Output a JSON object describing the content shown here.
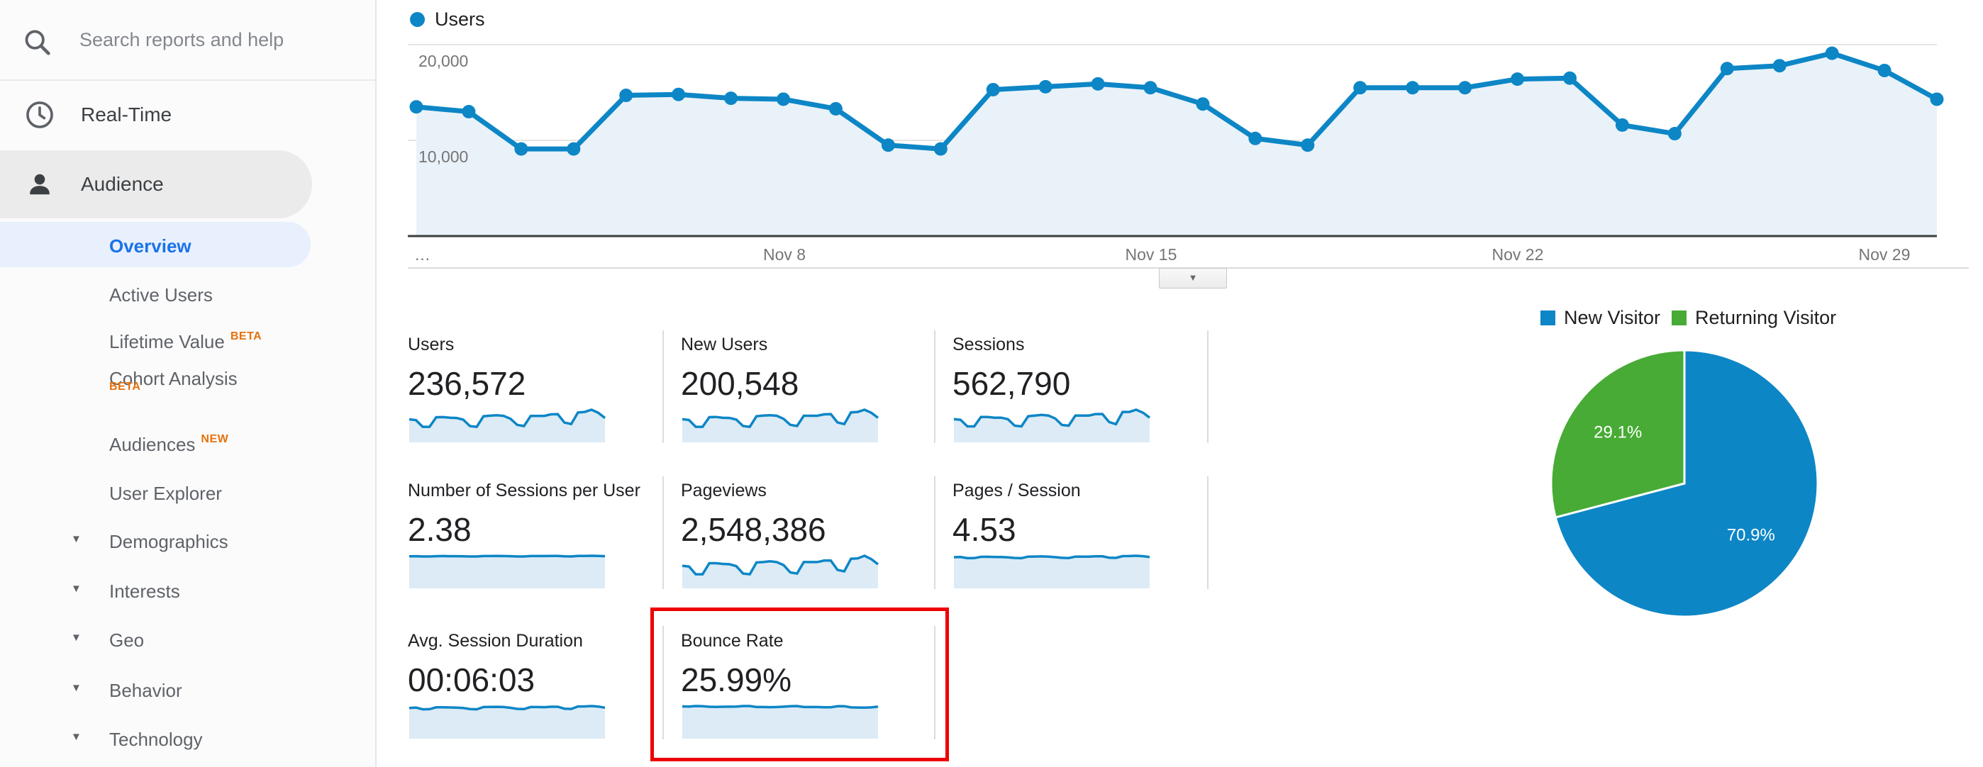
{
  "sidebar": {
    "search": {
      "placeholder": "Search reports and help"
    },
    "sections": [
      {
        "label": "Real-Time",
        "icon": "clock-icon"
      },
      {
        "label": "Audience",
        "icon": "person-icon",
        "active": true
      }
    ],
    "audience_items": [
      {
        "label": "Overview",
        "selected": true
      },
      {
        "label": "Active Users"
      },
      {
        "label": "Lifetime Value",
        "badge": "BETA",
        "badge_position": "superscript"
      },
      {
        "label": "Cohort Analysis",
        "badge": "BETA",
        "badge_position": "below"
      },
      {
        "label": "Audiences",
        "badge": "NEW",
        "badge_position": "superscript"
      },
      {
        "label": "User Explorer"
      },
      {
        "label": "Demographics",
        "expandable": true
      },
      {
        "label": "Interests",
        "expandable": true
      },
      {
        "label": "Geo",
        "expandable": true
      },
      {
        "label": "Behavior",
        "expandable": true
      },
      {
        "label": "Technology",
        "expandable": true
      }
    ]
  },
  "chart_data": [
    {
      "type": "line",
      "legend": [
        "Users"
      ],
      "x_dates": [
        "Nov 1",
        "Nov 2",
        "Nov 3",
        "Nov 4",
        "Nov 5",
        "Nov 6",
        "Nov 7",
        "Nov 8",
        "Nov 9",
        "Nov 10",
        "Nov 11",
        "Nov 12",
        "Nov 13",
        "Nov 14",
        "Nov 15",
        "Nov 16",
        "Nov 17",
        "Nov 18",
        "Nov 19",
        "Nov 20",
        "Nov 21",
        "Nov 22",
        "Nov 23",
        "Nov 24",
        "Nov 25",
        "Nov 26",
        "Nov 27",
        "Nov 28",
        "Nov 29",
        "Nov 30"
      ],
      "values": [
        13500,
        13000,
        9100,
        9100,
        14700,
        14800,
        14400,
        14300,
        13300,
        9500,
        9100,
        15300,
        15600,
        15900,
        15500,
        13800,
        10200,
        9500,
        15500,
        15500,
        15500,
        16400,
        16500,
        11600,
        10700,
        17500,
        17800,
        19100,
        17300,
        14300
      ],
      "x_tick_labels": [
        "…",
        "Nov 8",
        "Nov 15",
        "Nov 22",
        "Nov 29"
      ],
      "y_ticks": [
        10000,
        20000
      ],
      "y_tick_labels": [
        "10,000",
        "20,000"
      ],
      "ylim": [
        0,
        20000
      ],
      "grid": true,
      "line_color": "#0d86c6",
      "fill_color": "#e9f2f9"
    },
    {
      "type": "pie",
      "labels": [
        "New Visitor",
        "Returning Visitor"
      ],
      "values": [
        70.9,
        29.1
      ],
      "value_labels": [
        "70.9%",
        "29.1%"
      ],
      "colors": [
        "#0d86c6",
        "#47ab35"
      ],
      "legend_position": "top"
    }
  ],
  "metrics": [
    {
      "label": "Users",
      "value": "236,572",
      "spark": [
        13.5,
        13.0,
        9.1,
        9.1,
        14.7,
        14.8,
        14.4,
        14.3,
        13.3,
        9.5,
        9.1,
        15.3,
        15.6,
        15.9,
        15.5,
        13.8,
        10.2,
        9.5,
        15.5,
        15.5,
        15.5,
        16.4,
        16.5,
        11.6,
        10.7,
        17.5,
        17.8,
        19.1,
        17.3,
        14.3
      ]
    },
    {
      "label": "New Users",
      "value": "200,548",
      "spark": [
        11.5,
        11.1,
        7.7,
        7.7,
        12.5,
        12.6,
        12.2,
        12.1,
        11.3,
        8.1,
        7.7,
        13.0,
        13.3,
        13.5,
        13.2,
        11.7,
        8.7,
        8.1,
        13.2,
        13.2,
        13.2,
        13.9,
        14.0,
        9.9,
        9.1,
        14.9,
        15.1,
        16.2,
        14.7,
        12.2
      ]
    },
    {
      "label": "Sessions",
      "value": "562,790",
      "spark": [
        32,
        31,
        22,
        22,
        35,
        35,
        34,
        34,
        32,
        23,
        22,
        36,
        37,
        38,
        37,
        33,
        24,
        23,
        37,
        37,
        37,
        39,
        39,
        28,
        25,
        42,
        42,
        45,
        41,
        34
      ]
    },
    {
      "label": "Number of Sessions per User",
      "value": "2.38",
      "spark": [
        2.37,
        2.38,
        2.36,
        2.36,
        2.38,
        2.39,
        2.38,
        2.38,
        2.37,
        2.36,
        2.36,
        2.39,
        2.39,
        2.4,
        2.39,
        2.38,
        2.36,
        2.36,
        2.39,
        2.39,
        2.39,
        2.4,
        2.4,
        2.37,
        2.36,
        2.4,
        2.4,
        2.41,
        2.4,
        2.38
      ]
    },
    {
      "label": "Pageviews",
      "value": "2,548,386",
      "spark": [
        61,
        59,
        38,
        38,
        68,
        68,
        66,
        65,
        60,
        40,
        38,
        70,
        71,
        73,
        71,
        63,
        43,
        40,
        71,
        71,
        71,
        75,
        75,
        50,
        46,
        80,
        81,
        88,
        79,
        65
      ]
    },
    {
      "label": "Pages / Session",
      "value": "4.53",
      "spark": [
        4.5,
        4.52,
        4.35,
        4.36,
        4.55,
        4.56,
        4.53,
        4.52,
        4.48,
        4.38,
        4.35,
        4.58,
        4.59,
        4.61,
        4.58,
        4.5,
        4.4,
        4.37,
        4.58,
        4.58,
        4.57,
        4.62,
        4.62,
        4.42,
        4.39,
        4.65,
        4.66,
        4.7,
        4.64,
        4.52
      ]
    },
    {
      "label": "Avg. Session Duration",
      "value": "00:06:03",
      "spark": [
        360,
        365,
        345,
        346,
        368,
        369,
        366,
        365,
        360,
        348,
        345,
        371,
        372,
        374,
        371,
        362,
        350,
        347,
        371,
        371,
        370,
        375,
        375,
        352,
        349,
        378,
        379,
        383,
        377,
        364
      ]
    },
    {
      "label": "Bounce Rate",
      "value": "25.99%",
      "highlighted": true,
      "spark": [
        26.2,
        26.1,
        26.5,
        26.4,
        25.9,
        25.8,
        25.9,
        26.0,
        26.1,
        26.5,
        26.5,
        25.7,
        25.7,
        25.6,
        25.7,
        26.0,
        26.4,
        26.5,
        25.7,
        25.7,
        25.7,
        25.5,
        25.5,
        26.3,
        26.4,
        25.4,
        25.3,
        25.2,
        25.4,
        26.0
      ]
    }
  ],
  "annotation": {
    "highlight_target": "Bounce Rate",
    "color": "#ee0000"
  },
  "expander": {
    "icon": "chevron-down-icon",
    "glyph": "▼"
  },
  "colors": {
    "accent_blue": "#1a73e8",
    "selected_pill": "#e8f0fe",
    "section_pill": "#ebebeb",
    "line_blue": "#0d86c6",
    "pie_green": "#47ab35",
    "badge_orange": "#e8710a"
  }
}
